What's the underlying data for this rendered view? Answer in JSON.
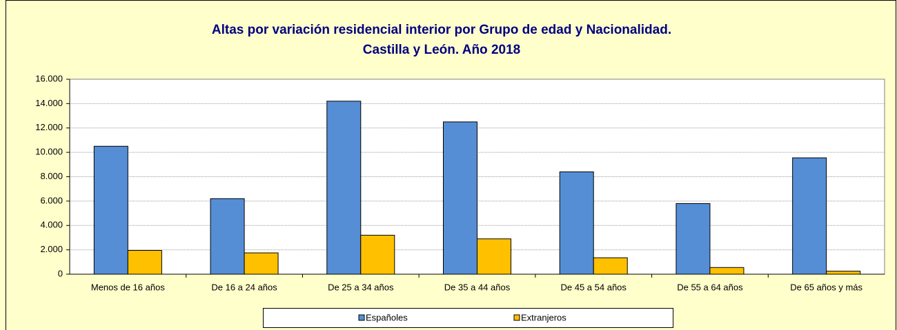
{
  "chart_data": {
    "type": "bar",
    "title": "Altas por variación residencial interior por Grupo de edad y Nacionalidad.",
    "subtitle": "Castilla y León. Año 2018",
    "categories": [
      "Menos de 16 años",
      "De 16 a 24 años",
      "De 25 a 34 años",
      "De 35 a 44 años",
      "De 45 a 54 años",
      "De 55 a 64 años",
      "De 65 años y más"
    ],
    "series": [
      {
        "name": "Españoles",
        "color": "#558ed5",
        "values": [
          10500,
          6200,
          14200,
          12500,
          8400,
          5800,
          9550
        ]
      },
      {
        "name": "Extranjeros",
        "color": "#ffc000",
        "values": [
          1950,
          1750,
          3200,
          2900,
          1350,
          550,
          250
        ]
      }
    ],
    "ylim": [
      0,
      16000
    ],
    "yticks": [
      0,
      {
        "value": 2000,
        "label": "2.000"
      },
      {
        "value": 4000,
        "label": "4.000"
      },
      {
        "value": 6000,
        "label": "6.000"
      },
      {
        "value": 8000,
        "label": "8.000"
      },
      {
        "value": 10000,
        "label": "10.000"
      },
      {
        "value": 12000,
        "label": "12.000"
      },
      {
        "value": 14000,
        "label": "14.000"
      },
      {
        "value": 16000,
        "label": "16.000"
      }
    ],
    "grid": true,
    "legend": "bottom"
  }
}
